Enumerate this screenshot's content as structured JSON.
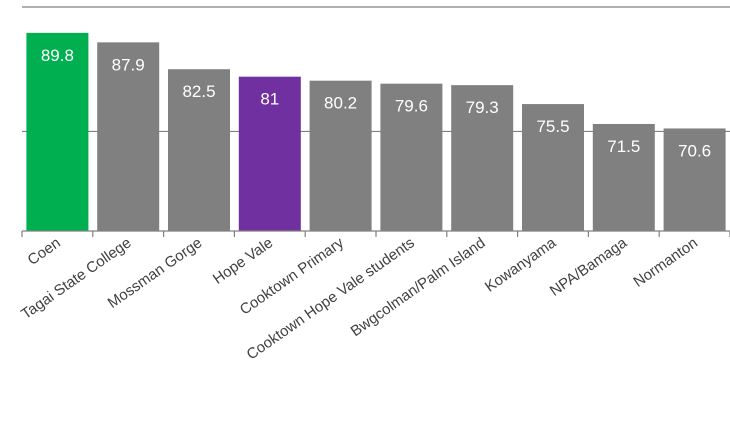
{
  "chart_data": {
    "type": "bar",
    "categories": [
      "Coen",
      "Tagai State College",
      "Mossman Gorge",
      "Hope Vale",
      "Cooktown Primary",
      "Cooktown Hope Vale students",
      "Bwgcolman/Palm Island",
      "Kowanyama",
      "NPA/Bamaga",
      "Normanton"
    ],
    "values": [
      89.8,
      87.9,
      82.5,
      81,
      80.2,
      79.6,
      79.3,
      75.5,
      71.5,
      70.6
    ],
    "data_labels": [
      "89.8",
      "87.9",
      "82.5",
      "81",
      "80.2",
      "79.6",
      "79.3",
      "75.5",
      "71.5",
      "70.6"
    ],
    "ylim": [
      50,
      95
    ],
    "gridlines": [
      50,
      70,
      95
    ],
    "grid": true,
    "legend": "none",
    "colors": {
      "default": "#808080",
      "highlight_first": "#00b050",
      "highlight_hope_vale": "#7030a0",
      "gridline": "#808080",
      "axis": "#808080",
      "label_text": "#ffffff",
      "category_text": "#404040"
    },
    "bar_colors": [
      "#00b050",
      "#808080",
      "#808080",
      "#7030a0",
      "#808080",
      "#808080",
      "#808080",
      "#808080",
      "#808080",
      "#808080"
    ]
  }
}
